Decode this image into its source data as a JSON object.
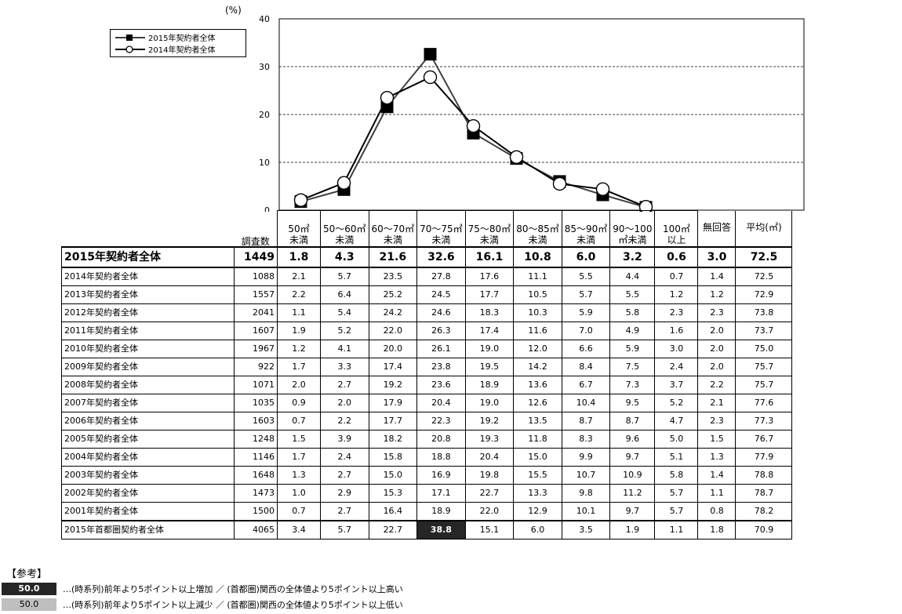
{
  "chart_data": {
    "type": "line",
    "unit_label": "(%)",
    "ylim": [
      0,
      40
    ],
    "yticks": [
      "0",
      "10",
      "20",
      "30",
      "40"
    ],
    "grid": true,
    "legend_position": "top-left",
    "categories": [
      "50㎡未満",
      "50～60㎡未満",
      "60～70㎡未満",
      "70～75㎡未満",
      "75～80㎡未満",
      "80～85㎡未満",
      "85～90㎡未満",
      "90～100㎡未満",
      "100㎡以上"
    ],
    "series": [
      {
        "name": "2015年契約者全体",
        "marker": "filled-square",
        "color": "#404040",
        "values": [
          1.8,
          4.3,
          21.6,
          32.6,
          16.1,
          10.8,
          6.0,
          3.2,
          0.6
        ]
      },
      {
        "name": "2014年契約者全体",
        "marker": "open-circle",
        "color": "#000000",
        "values": [
          2.1,
          5.7,
          23.5,
          27.8,
          17.6,
          11.1,
          5.5,
          4.4,
          0.7
        ]
      }
    ]
  },
  "table": {
    "n_header": "調査数",
    "columns": [
      {
        "line1": "50㎡",
        "line2": "未満"
      },
      {
        "line1": "50～60㎡",
        "line2": "未満"
      },
      {
        "line1": "60～70㎡",
        "line2": "未満"
      },
      {
        "line1": "70～75㎡",
        "line2": "未満"
      },
      {
        "line1": "75～80㎡",
        "line2": "未満"
      },
      {
        "line1": "80～85㎡",
        "line2": "未満"
      },
      {
        "line1": "85～90㎡",
        "line2": "未満"
      },
      {
        "line1": "90～100",
        "line2": "㎡未満"
      },
      {
        "line1": "100㎡",
        "line2": "以上"
      },
      {
        "line1": "無回答",
        "line2": ""
      },
      {
        "line1": "平均(㎡)",
        "line2": ""
      }
    ],
    "rows": [
      {
        "label": "2015年契約者全体",
        "n": "1449",
        "values": [
          "1.8",
          "4.3",
          "21.6",
          "32.6",
          "16.1",
          "10.8",
          "6.0",
          "3.2",
          "0.6",
          "3.0",
          "72.5"
        ],
        "emphasis": true
      },
      {
        "label": "2014年契約者全体",
        "n": "1088",
        "values": [
          "2.1",
          "5.7",
          "23.5",
          "27.8",
          "17.6",
          "11.1",
          "5.5",
          "4.4",
          "0.7",
          "1.4",
          "72.5"
        ]
      },
      {
        "label": "2013年契約者全体",
        "n": "1557",
        "values": [
          "2.2",
          "6.4",
          "25.2",
          "24.5",
          "17.7",
          "10.5",
          "5.7",
          "5.5",
          "1.2",
          "1.2",
          "72.9"
        ]
      },
      {
        "label": "2012年契約者全体",
        "n": "2041",
        "values": [
          "1.1",
          "5.4",
          "24.2",
          "24.6",
          "18.3",
          "10.3",
          "5.9",
          "5.8",
          "2.3",
          "2.3",
          "73.8"
        ]
      },
      {
        "label": "2011年契約者全体",
        "n": "1607",
        "values": [
          "1.9",
          "5.2",
          "22.0",
          "26.3",
          "17.4",
          "11.6",
          "7.0",
          "4.9",
          "1.6",
          "2.0",
          "73.7"
        ]
      },
      {
        "label": "2010年契約者全体",
        "n": "1967",
        "values": [
          "1.2",
          "4.1",
          "20.0",
          "26.1",
          "19.0",
          "12.0",
          "6.6",
          "5.9",
          "3.0",
          "2.0",
          "75.0"
        ]
      },
      {
        "label": "2009年契約者全体",
        "n": "922",
        "values": [
          "1.7",
          "3.3",
          "17.4",
          "23.8",
          "19.5",
          "14.2",
          "8.4",
          "7.5",
          "2.4",
          "2.0",
          "75.7"
        ]
      },
      {
        "label": "2008年契約者全体",
        "n": "1071",
        "values": [
          "2.0",
          "2.7",
          "19.2",
          "23.6",
          "18.9",
          "13.6",
          "6.7",
          "7.3",
          "3.7",
          "2.2",
          "75.7"
        ]
      },
      {
        "label": "2007年契約者全体",
        "n": "1035",
        "values": [
          "0.9",
          "2.0",
          "17.9",
          "20.4",
          "19.0",
          "12.6",
          "10.4",
          "9.5",
          "5.2",
          "2.1",
          "77.6"
        ]
      },
      {
        "label": "2006年契約者全体",
        "n": "1603",
        "values": [
          "0.7",
          "2.2",
          "17.7",
          "22.3",
          "19.2",
          "13.5",
          "8.7",
          "8.7",
          "4.7",
          "2.3",
          "77.3"
        ]
      },
      {
        "label": "2005年契約者全体",
        "n": "1248",
        "values": [
          "1.5",
          "3.9",
          "18.2",
          "20.8",
          "19.3",
          "11.8",
          "8.3",
          "9.6",
          "5.0",
          "1.5",
          "76.7"
        ]
      },
      {
        "label": "2004年契約者全体",
        "n": "1146",
        "values": [
          "1.7",
          "2.4",
          "15.8",
          "18.8",
          "20.4",
          "15.0",
          "9.9",
          "9.7",
          "5.1",
          "1.3",
          "77.9"
        ]
      },
      {
        "label": "2003年契約者全体",
        "n": "1648",
        "values": [
          "1.3",
          "2.7",
          "15.0",
          "16.9",
          "19.8",
          "15.5",
          "10.7",
          "10.9",
          "5.8",
          "1.4",
          "78.8"
        ]
      },
      {
        "label": "2002年契約者全体",
        "n": "1473",
        "values": [
          "1.0",
          "2.9",
          "15.3",
          "17.1",
          "22.7",
          "13.3",
          "9.8",
          "11.2",
          "5.7",
          "1.1",
          "78.7"
        ]
      },
      {
        "label": "2001年契約者全体",
        "n": "1500",
        "values": [
          "0.7",
          "2.7",
          "16.4",
          "18.9",
          "22.0",
          "12.9",
          "10.1",
          "9.7",
          "5.7",
          "0.8",
          "78.2"
        ]
      }
    ],
    "reference": {
      "tag": "【参考】",
      "label": "2015年首都圏契約者全体",
      "n": "4065",
      "values": [
        "3.4",
        "5.7",
        "22.7",
        "38.8",
        "15.1",
        "6.0",
        "3.5",
        "1.9",
        "1.1",
        "1.8",
        "70.9"
      ],
      "highlight_up": [
        3
      ]
    }
  },
  "notes": [
    {
      "swatch": "50.0",
      "style": "up",
      "text": "…(時系列)前年より5ポイント以上増加 ／ (首都圏)関西の全体値より5ポイント以上高い"
    },
    {
      "swatch": "50.0",
      "style": "down",
      "text": "…(時系列)前年より5ポイント以上減少 ／ (首都圏)関西の全体値より5ポイント以上低い"
    }
  ]
}
